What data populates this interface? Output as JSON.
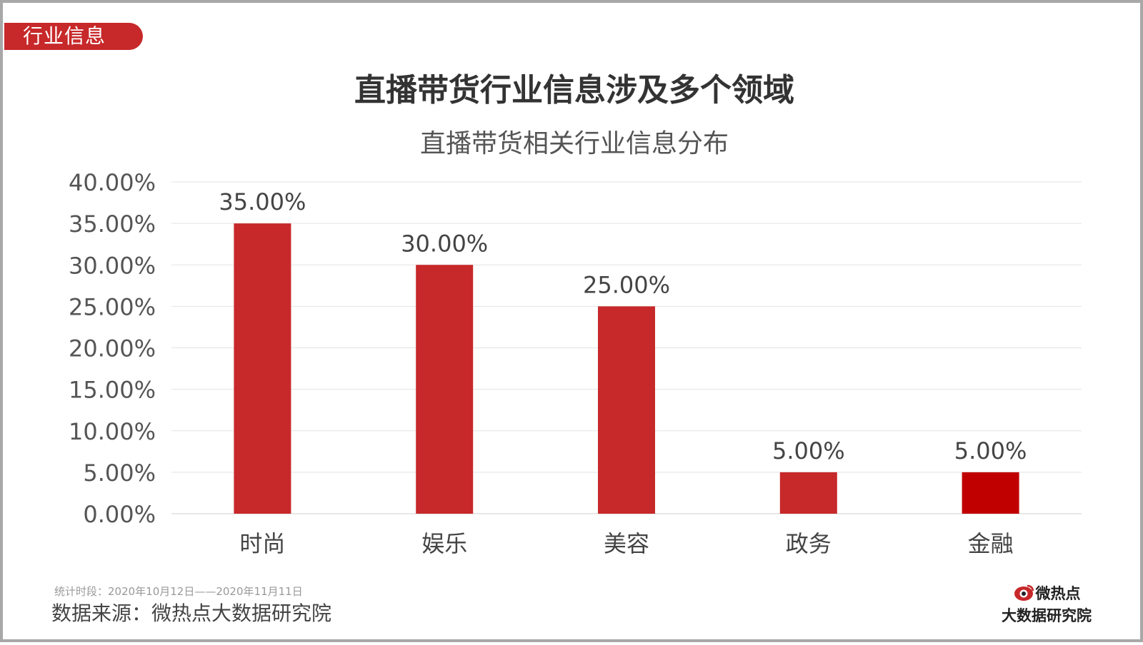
{
  "tag_label": "行业信息",
  "main_title": "直播带货行业信息涉及多个领域",
  "footer": {
    "period": "统计时段：2020年10月12日——2020年11月11日",
    "source": "数据来源：微热点大数据研究院"
  },
  "logo": {
    "name": "微热点",
    "subtitle": "大数据研究院",
    "icon": "eye-logo-icon"
  },
  "colors": {
    "accent": "#c7282a",
    "last_bar": "#c00000"
  },
  "chart_data": {
    "type": "bar",
    "title": "直播带货相关行业信息分布",
    "categories": [
      "时尚",
      "娱乐",
      "美容",
      "政务",
      "金融"
    ],
    "values": [
      35.0,
      30.0,
      25.0,
      5.0,
      5.0
    ],
    "value_labels": [
      "35.00%",
      "30.00%",
      "25.00%",
      "5.00%",
      "5.00%"
    ],
    "y_ticks": [
      "0.00%",
      "5.00%",
      "10.00%",
      "15.00%",
      "20.00%",
      "25.00%",
      "30.00%",
      "35.00%",
      "40.00%"
    ],
    "ylim": [
      0,
      40
    ],
    "grid": true,
    "legend": "none",
    "xlabel": "",
    "ylabel": ""
  }
}
